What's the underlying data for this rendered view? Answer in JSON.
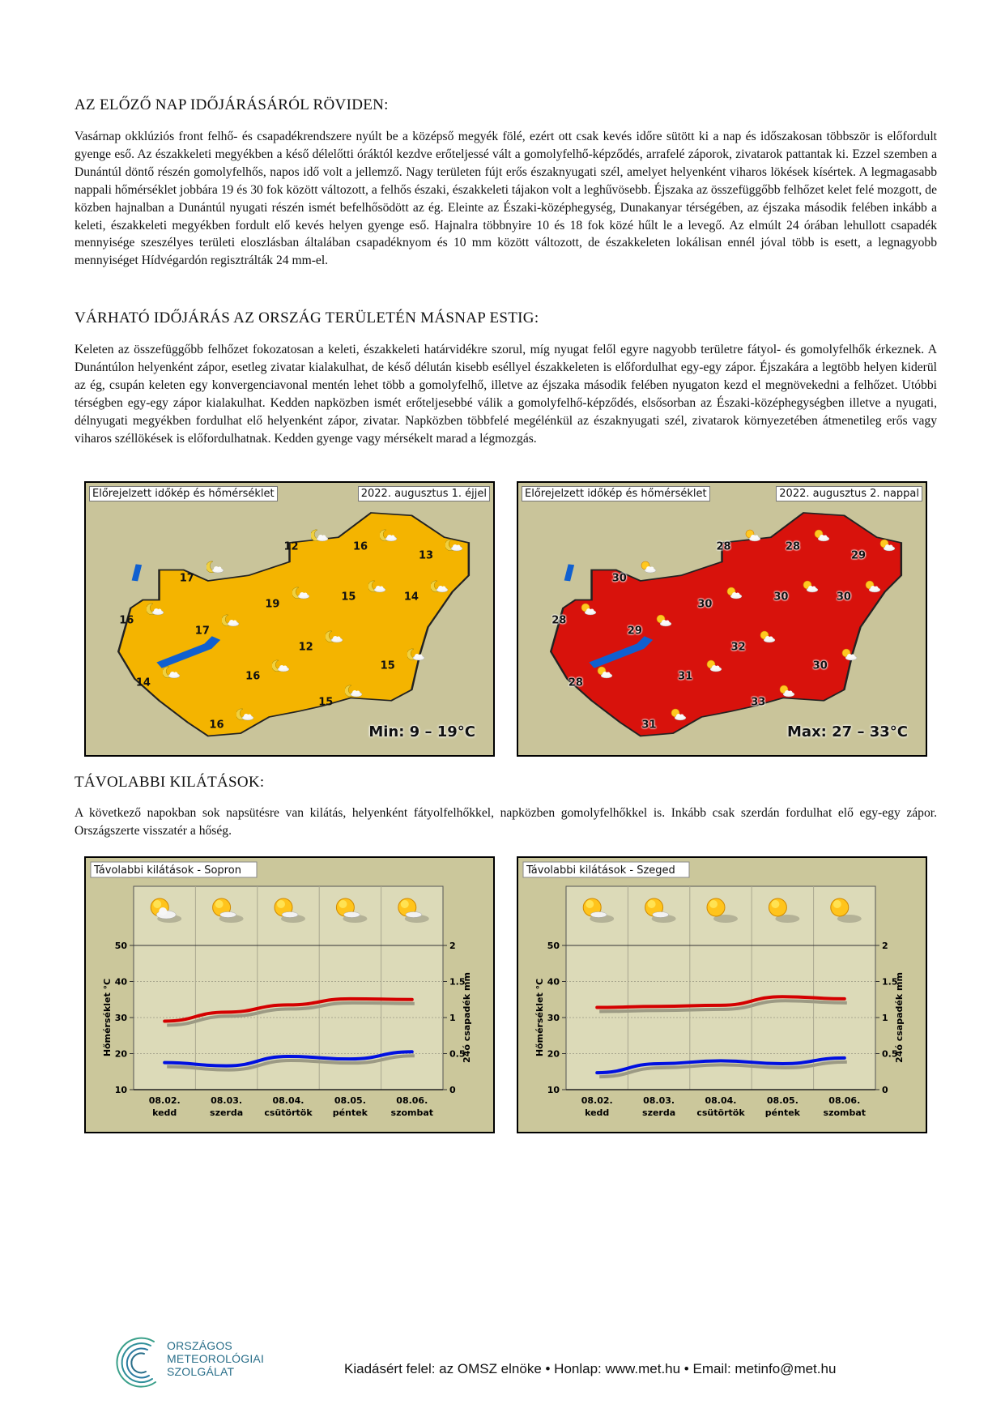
{
  "sections": [
    {
      "heading": "AZ ELŐZŐ NAP IDŐJÁRÁSÁRÓL RÖVIDEN:",
      "text": "Vasárnap okklúziós front felhő- és csapadékrendszere nyúlt be a középső megyék fölé, ezért ott csak kevés időre sütött ki a nap és időszakosan többször is előfordult gyenge eső. Az északkeleti megyékben a késő délelőtti óráktól kezdve erőteljessé vált a gomolyfelhő-képződés, arrafelé záporok, zivatarok pattantak ki. Ezzel szemben a Dunántúl döntő részén gomolyfelhős, napos idő volt a jellemző. Nagy területen fújt erős északnyugati szél, amelyet helyenként viharos lökések kísértek. A legmagasabb nappali hőmérséklet jobbára 19 és 30 fok között változott, a felhős északi, északkeleti tájakon volt a leghűvösebb. Éjszaka az összefüggőbb felhőzet kelet felé mozgott, de közben hajnalban a Dunántúl nyugati részén ismét befelhősödött az ég. Eleinte az Északi-középhegység, Dunakanyar térségében, az éjszaka második felében inkább a keleti, északkeleti megyékben fordult elő kevés helyen gyenge eső. Hajnalra többnyire 10 és 18 fok közé hűlt le a levegő. Az elmúlt 24 órában lehullott csapadék mennyisége szeszélyes területi eloszlásban általában csapadéknyom és 10 mm között változott, de északkeleten lokálisan ennél jóval több is esett, a legnagyobb mennyiséget Hídvégardón regisztrálták 24 mm-el."
    },
    {
      "heading": "VÁRHATÓ IDŐJÁRÁS AZ ORSZÁG TERÜLETÉN MÁSNAP ESTIG:",
      "text": "Keleten az összefüggőbb felhőzet fokozatosan a keleti, északkeleti határvidékre szorul, míg nyugat felől egyre nagyobb területre fátyol- és gomolyfelhők érkeznek. A Dunántúlon helyenként zápor, esetleg zivatar kialakulhat, de késő délután kisebb eséllyel északkeleten is előfordulhat egy-egy zápor. Éjszakára a legtöbb helyen kiderül az ég, csupán keleten egy konvergenciavonal mentén lehet több a gomolyfelhő, illetve az éjszaka második felében nyugaton kezd el megnövekedni a felhőzet. Utóbbi térségben egy-egy zápor kialakulhat. Kedden napközben ismét erőteljesebbé válik a gomolyfelhő-képződés, elsősorban az Északi-középhegységben illetve a nyugati, délnyugati megyékben fordulhat elő helyenként zápor, zivatar. Napközben többfelé megélénkül az északnyugati szél, zivatarok környezetében átmenetileg erős vagy viharos széllökések is előfordulhatnak. Kedden gyenge vagy mérsékelt marad a légmozgás."
    },
    {
      "heading": "TÁVOLABBI KILÁTÁSOK:",
      "text": "A következő napokban sok napsütésre van kilátás, helyenként fátyolfelhőkkel, napközben gomolyfelhőkkel is. Inkább csak szerdán fordulhat elő egy-egy zápor. Országszerte visszatér a hőség."
    }
  ],
  "maps": [
    {
      "title": "Előrejelzett időkép és hőmérséklet",
      "date": "2022. augusztus 1. éjjel",
      "range": "Min: 9 – 19°C",
      "fill": "#f4b400",
      "temps": [
        "12",
        "16",
        "13",
        "17",
        "19",
        "15",
        "14",
        "16",
        "17",
        "12",
        "15",
        "14",
        "16",
        "15",
        "16"
      ],
      "icon": "moon-cloud"
    },
    {
      "title": "Előrejelzett időkép és hőmérséklet",
      "date": "2022. augusztus 2. nappal",
      "range": "Max: 27 – 33°C",
      "fill": "#d8120c",
      "temps": [
        "28",
        "28",
        "29",
        "30",
        "30",
        "30",
        "30",
        "28",
        "29",
        "32",
        "30",
        "28",
        "31",
        "33",
        "31"
      ],
      "icon": "sun-cloud"
    }
  ],
  "chart_data": [
    {
      "type": "line",
      "title": "Távolabbi kilátások - Sopron",
      "categories": [
        "08.02.",
        "08.03.",
        "08.04.",
        "08.05.",
        "08.06."
      ],
      "category_days": [
        "kedd",
        "szerda",
        "csütörtök",
        "péntek",
        "szombat"
      ],
      "icons": [
        "sun-cloud",
        "sun-cloud-light",
        "sun-cloud-light",
        "sun-cloud-light",
        "sun-cloud-light"
      ],
      "ylabel": "Hőmérséklet °C",
      "y2label": "24ó csapadék mm",
      "ylim": [
        10,
        50
      ],
      "yticks": [
        10,
        20,
        30,
        40,
        50
      ],
      "y2lim": [
        0,
        2
      ],
      "y2ticks": [
        "0",
        "0.5",
        "1",
        "1.5",
        "2"
      ],
      "series": [
        {
          "name": "max",
          "color": "#d40000",
          "values": [
            29,
            31.5,
            33.5,
            35.2,
            35
          ]
        },
        {
          "name": "min",
          "color": "#0010e0",
          "values": [
            17.5,
            16.6,
            19.2,
            18.5,
            20.5
          ]
        }
      ]
    },
    {
      "type": "line",
      "title": "Távolabbi kilátások - Szeged",
      "categories": [
        "08.02.",
        "08.03.",
        "08.04.",
        "08.05.",
        "08.06."
      ],
      "category_days": [
        "kedd",
        "szerda",
        "csütörtök",
        "péntek",
        "szombat"
      ],
      "icons": [
        "sun-cloud-light",
        "sun-cloud-light",
        "sun",
        "sun",
        "sun"
      ],
      "ylabel": "Hőmérséklet °C",
      "y2label": "24ó csapadék mm",
      "ylim": [
        10,
        50
      ],
      "yticks": [
        10,
        20,
        30,
        40,
        50
      ],
      "y2lim": [
        0,
        2
      ],
      "y2ticks": [
        "0",
        "0.5",
        "1",
        "1.5",
        "2"
      ],
      "series": [
        {
          "name": "max",
          "color": "#d40000",
          "values": [
            32.8,
            33.1,
            33.4,
            35.8,
            35.2
          ]
        },
        {
          "name": "min",
          "color": "#0010e0",
          "values": [
            14.7,
            17.2,
            18,
            17.2,
            18.8
          ]
        }
      ]
    }
  ],
  "footer": {
    "logo_lines": [
      "ORSZÁGOS",
      "METEOROLÓGIAI",
      "SZOLGÁLAT"
    ],
    "text": "Kiadásért felel: az OMSZ elnöke • Honlap: www.met.hu • Email: metinfo@met.hu"
  }
}
